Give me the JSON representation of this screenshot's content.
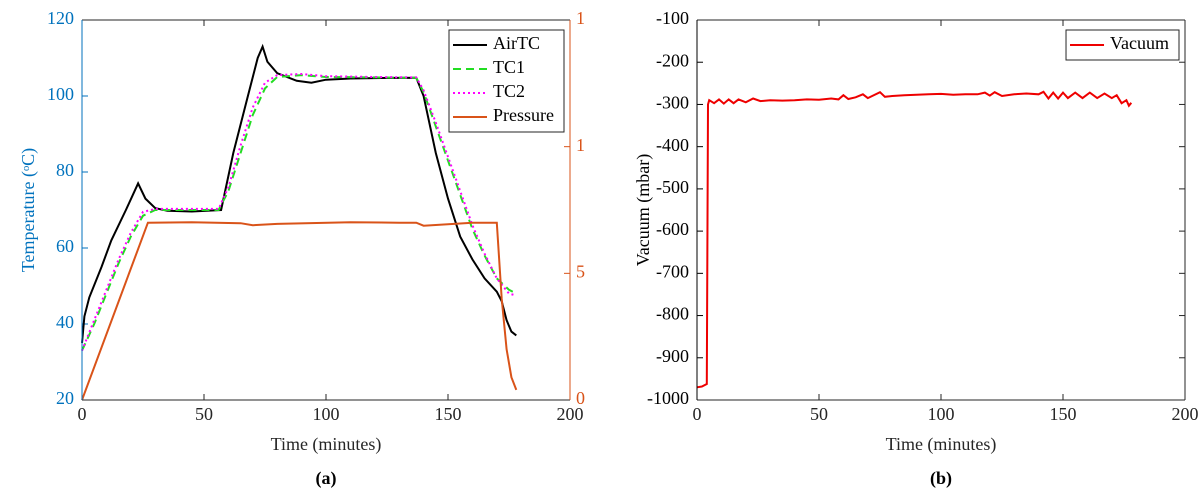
{
  "chart_data": [
    {
      "type": "line",
      "xlabel": "Time (minutes)",
      "ylabel": "Temperature (ᵒC)",
      "caption": "(a)",
      "xlim": [
        0,
        200
      ],
      "xticks": [
        0,
        50,
        100,
        150,
        200
      ],
      "ylim": [
        20,
        120
      ],
      "yticks": [
        20,
        40,
        60,
        80,
        100,
        120
      ],
      "y2lim": [
        0,
        15
      ],
      "y2ticks": [
        0,
        5,
        {
          "value": 10,
          "label": "1"
        },
        {
          "value": 15,
          "label": "1"
        }
      ],
      "ycolor": "#0072bd",
      "y2color": "#d95319",
      "legend": "upper right",
      "series": [
        {
          "name": "AirTC",
          "color": "#000000",
          "dash": "none",
          "x": [
            0,
            1,
            3,
            8,
            12,
            18,
            23,
            26,
            30,
            35,
            45,
            57,
            62,
            68,
            72,
            74,
            76,
            80,
            88,
            94,
            100,
            110,
            120,
            137,
            140,
            145,
            150,
            155,
            160,
            165,
            170,
            172,
            174,
            176,
            178
          ],
          "values": [
            35,
            42,
            47,
            55,
            62,
            70,
            77,
            73,
            70.5,
            69.8,
            69.6,
            70,
            85,
            100,
            110,
            113,
            109,
            106,
            104,
            103.5,
            104.3,
            104.6,
            104.7,
            104.8,
            100,
            85,
            73,
            63,
            57,
            52,
            48.5,
            46,
            41,
            38,
            37
          ]
        },
        {
          "name": "TC1",
          "color": "#22dd22",
          "dash": "8 5",
          "x": [
            0,
            5,
            10,
            15,
            20,
            25,
            30,
            40,
            56,
            60,
            65,
            70,
            75,
            80,
            90,
            100,
            120,
            137,
            140,
            145,
            150,
            155,
            160,
            165,
            170,
            175,
            178
          ],
          "values": [
            33,
            40,
            48,
            56,
            63,
            68.5,
            70,
            70,
            70,
            75,
            85,
            95,
            102,
            105,
            105.5,
            105,
            104.9,
            104.8,
            101,
            92,
            83,
            74,
            65,
            58,
            52,
            49,
            48
          ]
        },
        {
          "name": "TC2",
          "color": "#ff00ff",
          "dash": "2 3",
          "x": [
            0,
            5,
            10,
            15,
            20,
            25,
            30,
            40,
            56,
            60,
            65,
            70,
            75,
            80,
            90,
            100,
            120,
            137,
            140,
            145,
            150,
            155,
            160,
            165,
            170,
            175,
            178
          ],
          "values": [
            33,
            41,
            49,
            57,
            64,
            69.5,
            70.3,
            70.3,
            70.3,
            76,
            87,
            97,
            103.5,
            105.5,
            105.8,
            105.2,
            105,
            104.9,
            101.5,
            93,
            84,
            75,
            66,
            58.5,
            52,
            48,
            47.5
          ]
        },
        {
          "name": "Pressure",
          "color": "#d95319",
          "dash": "none",
          "axis": "y2",
          "x": [
            0,
            27,
            45,
            65,
            70,
            80,
            110,
            130,
            137,
            140,
            160,
            170,
            172,
            174,
            176,
            178
          ],
          "values": [
            0,
            7,
            7.02,
            6.98,
            6.9,
            6.95,
            7.02,
            7,
            7,
            6.88,
            7,
            7,
            4,
            2,
            0.9,
            0.4
          ]
        }
      ]
    },
    {
      "type": "line",
      "xlabel": "Time (minutes)",
      "ylabel": "Vacuum (mbar)",
      "caption": "(b)",
      "xlim": [
        0,
        200
      ],
      "xticks": [
        0,
        50,
        100,
        150,
        200
      ],
      "ylim": [
        -1000,
        -100
      ],
      "yticks": [
        -1000,
        -900,
        -800,
        -700,
        -600,
        -500,
        -400,
        -300,
        -200,
        -100
      ],
      "ycolor": "#000000",
      "legend": "upper right",
      "series": [
        {
          "name": "Vacuum",
          "color": "#ee0000",
          "dash": "none",
          "x": [
            0,
            2,
            4,
            4.5,
            5,
            7,
            9,
            11,
            13,
            15,
            17,
            20,
            23,
            26,
            30,
            35,
            40,
            45,
            50,
            55,
            58,
            60,
            62,
            65,
            68,
            70,
            75,
            77,
            80,
            85,
            90,
            95,
            100,
            105,
            110,
            115,
            118,
            120,
            122,
            125,
            130,
            135,
            140,
            142,
            144,
            146,
            148,
            150,
            152,
            155,
            158,
            161,
            164,
            167,
            170,
            172,
            174,
            176,
            177,
            178
          ],
          "values": [
            -970,
            -968,
            -962,
            -300,
            -290,
            -297,
            -288,
            -298,
            -288,
            -297,
            -288,
            -295,
            -286,
            -292,
            -290,
            -291,
            -290,
            -288,
            -289,
            -286,
            -288,
            -278,
            -287,
            -283,
            -276,
            -285,
            -271,
            -282,
            -280,
            -278,
            -277,
            -276,
            -275,
            -277,
            -276,
            -276,
            -272,
            -279,
            -271,
            -280,
            -276,
            -274,
            -276,
            -270,
            -286,
            -272,
            -286,
            -272,
            -285,
            -272,
            -285,
            -272,
            -285,
            -274,
            -285,
            -278,
            -297,
            -290,
            -303,
            -296
          ]
        }
      ]
    }
  ]
}
